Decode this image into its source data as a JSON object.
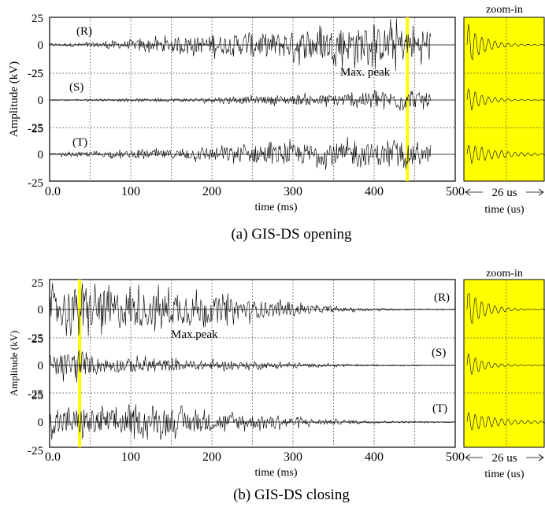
{
  "chart_data": [
    {
      "type": "line",
      "caption": "(a) GIS-DS opening",
      "xlabel": "time (ms)",
      "ylabel": "Amplitude (kV)",
      "xlim": [
        0,
        500
      ],
      "x_ticks": [
        "0.0",
        "100",
        "200",
        "300",
        "400",
        "500"
      ],
      "y_ticks": [
        "25",
        "0",
        "-25"
      ],
      "ylim_per_channel": [
        -25,
        25
      ],
      "grid": true,
      "series": [
        {
          "name": "(R)",
          "envelope_x": [
            0,
            50,
            100,
            150,
            200,
            250,
            300,
            350,
            400,
            430,
            450,
            470
          ],
          "envelope_amp": [
            1,
            2,
            4,
            6,
            8,
            10,
            12,
            14,
            15,
            16,
            12,
            10
          ],
          "active_range": [
            0,
            470
          ]
        },
        {
          "name": "(S)",
          "envelope_x": [
            0,
            50,
            100,
            150,
            200,
            250,
            300,
            350,
            400,
            430,
            450,
            470
          ],
          "envelope_amp": [
            0.5,
            0.8,
            1,
            1.5,
            2,
            3,
            4,
            5,
            7,
            8,
            7,
            6
          ],
          "active_range": [
            0,
            470
          ]
        },
        {
          "name": "(T)",
          "envelope_x": [
            0,
            50,
            100,
            150,
            200,
            250,
            300,
            350,
            400,
            430,
            450,
            470
          ],
          "envelope_amp": [
            1,
            2,
            3,
            4,
            6,
            8,
            9,
            10,
            10,
            9,
            8,
            7
          ],
          "active_range": [
            0,
            470
          ]
        }
      ],
      "max_peak": {
        "label": "Max. peak",
        "x": 441
      },
      "zoom": {
        "title": "zoom-in",
        "span_label": "26 us",
        "xlabel": "time (us)",
        "background": "#ffff00"
      }
    },
    {
      "type": "line",
      "caption": "(b) GIS-DS closing",
      "xlabel": "time (ms)",
      "ylabel": "Amplitude (kV)",
      "xlim": [
        0,
        500
      ],
      "x_ticks": [
        "0.0",
        "100",
        "200",
        "300",
        "400",
        "500"
      ],
      "y_ticks": [
        "25",
        "0",
        "-25"
      ],
      "ylim_per_channel": [
        -25,
        25
      ],
      "grid": true,
      "series": [
        {
          "name": "(R)",
          "envelope_x": [
            0,
            30,
            50,
            100,
            150,
            200,
            250,
            300,
            350,
            400,
            450,
            500
          ],
          "envelope_amp": [
            15,
            20,
            18,
            16,
            14,
            11,
            8,
            5,
            2,
            1,
            0.6,
            0.4
          ],
          "active_range": [
            0,
            500
          ]
        },
        {
          "name": "(S)",
          "envelope_x": [
            0,
            30,
            50,
            100,
            150,
            200,
            250,
            300,
            350,
            400,
            450,
            500
          ],
          "envelope_amp": [
            8,
            12,
            7,
            6,
            5,
            4,
            3,
            2,
            1,
            0.6,
            0.4,
            0.3
          ],
          "active_range": [
            0,
            500
          ]
        },
        {
          "name": "(T)",
          "envelope_x": [
            0,
            30,
            50,
            100,
            150,
            200,
            250,
            300,
            350,
            400,
            450,
            500
          ],
          "envelope_amp": [
            10,
            12,
            11,
            11,
            10,
            8,
            6,
            4,
            2,
            1,
            0.6,
            0.4
          ],
          "active_range": [
            0,
            500
          ]
        }
      ],
      "max_peak": {
        "label": "Max.peak",
        "x": 37
      },
      "zoom": {
        "title": "zoom-in",
        "span_label": "26 us",
        "xlabel": "time (us)",
        "background": "#ffff00"
      }
    }
  ],
  "colors": {
    "trace": "#000000",
    "highlight": "#ffff00",
    "grid": "#555555"
  }
}
